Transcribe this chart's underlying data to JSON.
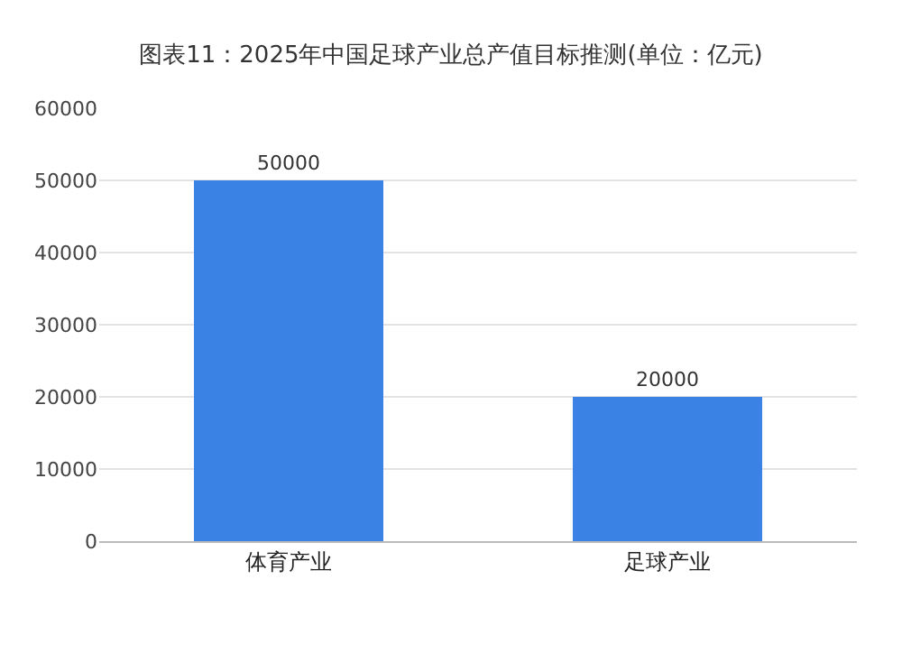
{
  "chart_data": {
    "type": "bar",
    "title": "图表11：2025年中国足球产业总产值目标推测(单位：亿元)",
    "categories": [
      "体育产业",
      "足球产业"
    ],
    "values": [
      50000,
      20000
    ],
    "color": "#3a82e4",
    "ylim": [
      0,
      60000
    ],
    "yticks": [
      0,
      10000,
      20000,
      30000,
      40000,
      50000,
      60000
    ],
    "grid": "y",
    "data_labels": true
  }
}
